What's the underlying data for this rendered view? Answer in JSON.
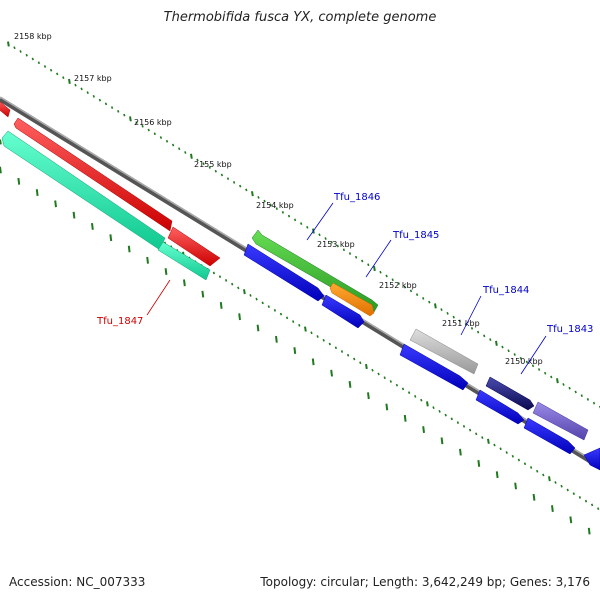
{
  "title": "Thermobifida fusca YX, complete genome",
  "footer": {
    "accession_label": "Accession: NC_007333",
    "summary": "Topology: circular; Length: 3,642,249 bp; Genes: 3,176"
  },
  "ruler": {
    "ticks": [
      "2158 kbp",
      "2157 kbp",
      "2156 kbp",
      "2155 kbp",
      "2154 kbp",
      "2153 kbp",
      "2152 kbp",
      "2151 kbp",
      "2150 kbp"
    ],
    "tick_color": "#1f7a1f"
  },
  "gene_labels": [
    {
      "id": "Tfu_1847",
      "color": "#cc0000"
    },
    {
      "id": "Tfu_1846",
      "color": "#0000cc"
    },
    {
      "id": "Tfu_1845",
      "color": "#0000cc"
    },
    {
      "id": "Tfu_1844",
      "color": "#0000cc"
    },
    {
      "id": "Tfu_1843",
      "color": "#0000cc"
    }
  ],
  "colors": {
    "backbone": "#777777",
    "red_feature": "#ee0000",
    "teal_feature": "#22e0a8",
    "green_feature": "#44bb33",
    "orange_feature": "#ff8c00",
    "grey_feature": "#bbbbbb",
    "navy_feature": "#1a1a80",
    "purple_feature": "#7766cc",
    "blue_feature": "#1a1ae6"
  }
}
